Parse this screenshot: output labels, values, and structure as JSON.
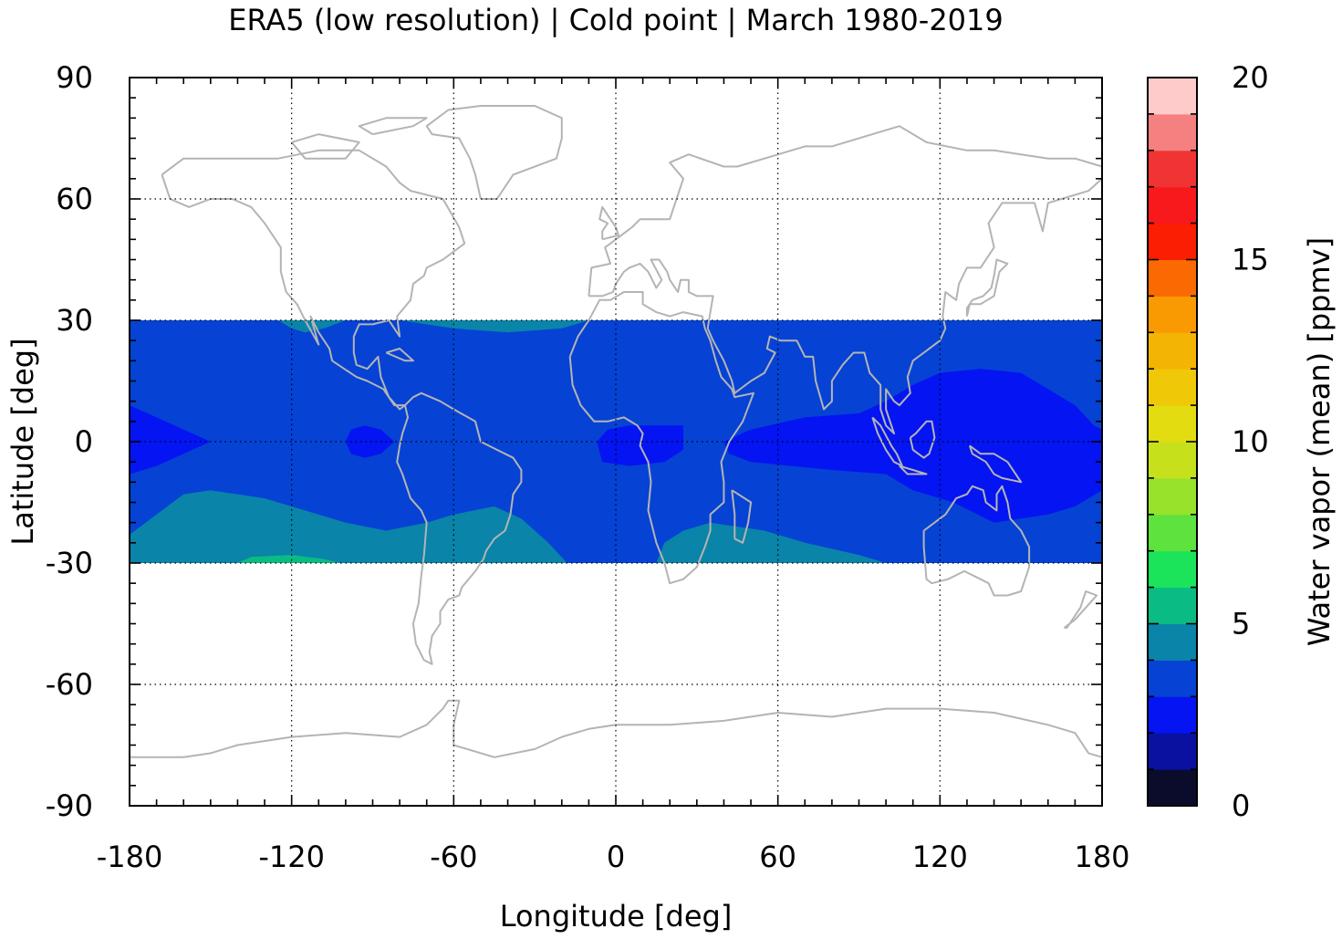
{
  "chart_data": {
    "type": "heatmap",
    "title": "ERA5 (low resolution) | Cold point | March 1980-2019",
    "xlabel": "Longitude [deg]",
    "ylabel": "Latitude [deg]",
    "xlim": [
      -180,
      180
    ],
    "ylim": [
      -90,
      90
    ],
    "xticks": [
      "-180",
      "-120",
      "-60",
      "0",
      "60",
      "120",
      "180"
    ],
    "yticks": [
      "90",
      "60",
      "30",
      "0",
      "-30",
      "-60",
      "-90"
    ],
    "data_lat_range": [
      -30,
      30
    ],
    "grid": true,
    "coastlines": true,
    "coastline_color": "#b4b4b4",
    "colorbar": {
      "label": "Water vapor (mean) [ppmv]",
      "min": 0,
      "max": 20,
      "ticks": [
        "0",
        "5",
        "10",
        "15",
        "20"
      ],
      "bins": [
        {
          "from": 0,
          "to": 1,
          "color": "#0b0c2c"
        },
        {
          "from": 1,
          "to": 2,
          "color": "#0a10a0"
        },
        {
          "from": 2,
          "to": 3,
          "color": "#0414f2"
        },
        {
          "from": 3,
          "to": 4,
          "color": "#0642d4"
        },
        {
          "from": 4,
          "to": 5,
          "color": "#0a84a8"
        },
        {
          "from": 5,
          "to": 6,
          "color": "#0bbb84"
        },
        {
          "from": 6,
          "to": 7,
          "color": "#1be45a"
        },
        {
          "from": 7,
          "to": 8,
          "color": "#5de23e"
        },
        {
          "from": 8,
          "to": 9,
          "color": "#97e22a"
        },
        {
          "from": 9,
          "to": 10,
          "color": "#c6e01c"
        },
        {
          "from": 10,
          "to": 11,
          "color": "#e3dc10"
        },
        {
          "from": 11,
          "to": 12,
          "color": "#efc808"
        },
        {
          "from": 12,
          "to": 13,
          "color": "#f4b404"
        },
        {
          "from": 13,
          "to": 14,
          "color": "#fa9a02"
        },
        {
          "from": 14,
          "to": 15,
          "color": "#fb6a02"
        },
        {
          "from": 15,
          "to": 16,
          "color": "#fb1e02"
        },
        {
          "from": 16,
          "to": 17,
          "color": "#f7191c"
        },
        {
          "from": 17,
          "to": 18,
          "color": "#f03434"
        },
        {
          "from": 18,
          "to": 19,
          "color": "#f48080"
        },
        {
          "from": 19,
          "to": 20,
          "color": "#fecaca"
        }
      ]
    },
    "background_value_range": [
      3,
      4
    ],
    "regions": [
      {
        "value_range": [
          4,
          5
        ],
        "color": "#0a84a8",
        "polygon": [
          [
            -180,
            30
          ],
          [
            -125,
            30
          ],
          [
            -120,
            28
          ],
          [
            -115,
            27
          ],
          [
            -108,
            28
          ],
          [
            -100,
            30
          ],
          [
            -180,
            30
          ]
        ]
      },
      {
        "value_range": [
          4,
          5
        ],
        "color": "#0a84a8",
        "polygon": [
          [
            -80,
            30
          ],
          [
            -60,
            28
          ],
          [
            -40,
            27
          ],
          [
            -20,
            28
          ],
          [
            -10,
            30
          ],
          [
            -80,
            30
          ]
        ]
      },
      {
        "value_range": [
          4,
          5
        ],
        "color": "#0a84a8",
        "polygon": [
          [
            -180,
            -30
          ],
          [
            -180,
            -23
          ],
          [
            -170,
            -18
          ],
          [
            -160,
            -13
          ],
          [
            -150,
            -12
          ],
          [
            -130,
            -14
          ],
          [
            -115,
            -17
          ],
          [
            -100,
            -20
          ],
          [
            -85,
            -22
          ],
          [
            -70,
            -20
          ],
          [
            -60,
            -18
          ],
          [
            -45,
            -16
          ],
          [
            -35,
            -19
          ],
          [
            -25,
            -25
          ],
          [
            -18,
            -30
          ]
        ]
      },
      {
        "value_range": [
          4,
          5
        ],
        "color": "#0a84a8",
        "polygon": [
          [
            15,
            -30
          ],
          [
            18,
            -25
          ],
          [
            25,
            -22
          ],
          [
            35,
            -20
          ],
          [
            45,
            -21
          ],
          [
            55,
            -22
          ],
          [
            70,
            -25
          ],
          [
            90,
            -28
          ],
          [
            100,
            -30
          ]
        ]
      },
      {
        "value_range": [
          5,
          6
        ],
        "color": "#0bbb84",
        "polygon": [
          [
            -140,
            -30
          ],
          [
            -135,
            -28.5
          ],
          [
            -120,
            -28
          ],
          [
            -108,
            -29
          ],
          [
            -102,
            -30
          ]
        ]
      },
      {
        "value_range": [
          2,
          3
        ],
        "color": "#0414f2",
        "polygon": [
          [
            -180,
            9
          ],
          [
            -170,
            6
          ],
          [
            -160,
            3
          ],
          [
            -150,
            0
          ],
          [
            -160,
            -3
          ],
          [
            -170,
            -6
          ],
          [
            -180,
            -8
          ]
        ]
      },
      {
        "value_range": [
          2,
          3
        ],
        "color": "#0414f2",
        "polygon": [
          [
            -100,
            0
          ],
          [
            -98,
            3
          ],
          [
            -93,
            4
          ],
          [
            -87,
            3
          ],
          [
            -82,
            0
          ],
          [
            -87,
            -3
          ],
          [
            -93,
            -4
          ],
          [
            -98,
            -3
          ]
        ]
      },
      {
        "value_range": [
          2,
          3
        ],
        "color": "#0414f2",
        "polygon": [
          [
            -7,
            0
          ],
          [
            -3,
            3
          ],
          [
            5,
            4
          ],
          [
            15,
            4
          ],
          [
            25,
            4
          ],
          [
            25,
            -2
          ],
          [
            18,
            -5
          ],
          [
            5,
            -6
          ],
          [
            -5,
            -5
          ]
        ]
      },
      {
        "value_range": [
          2,
          3
        ],
        "color": "#0414f2",
        "polygon": [
          [
            40,
            0
          ],
          [
            50,
            3
          ],
          [
            70,
            6
          ],
          [
            90,
            7
          ],
          [
            100,
            10
          ],
          [
            110,
            14
          ],
          [
            120,
            17
          ],
          [
            135,
            18
          ],
          [
            150,
            17
          ],
          [
            160,
            13
          ],
          [
            170,
            9
          ],
          [
            177,
            4
          ],
          [
            180,
            3
          ],
          [
            180,
            -12
          ],
          [
            170,
            -16
          ],
          [
            160,
            -18
          ],
          [
            140,
            -20
          ],
          [
            125,
            -15
          ],
          [
            110,
            -12
          ],
          [
            100,
            -8
          ],
          [
            80,
            -7
          ],
          [
            65,
            -6
          ],
          [
            50,
            -5
          ],
          [
            42,
            -3
          ]
        ]
      }
    ],
    "note": "Coastline outlines are drawn as simplified decorative shapes."
  }
}
